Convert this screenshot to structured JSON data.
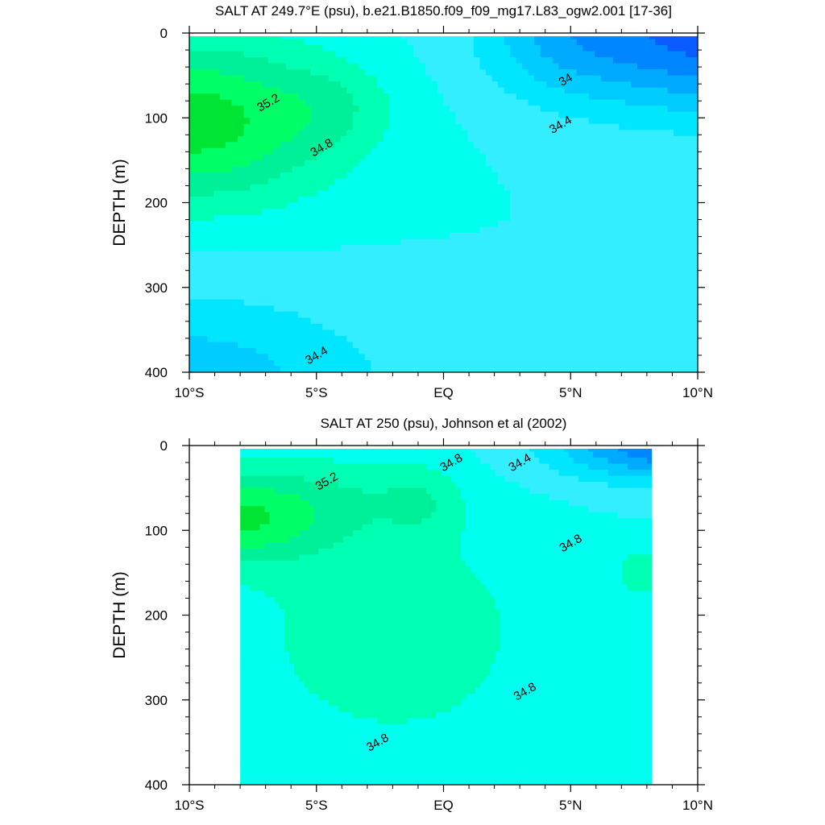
{
  "chart_data": [
    {
      "type": "contour",
      "title": "SALT AT 249.7°E (psu), b.e21.B1850.f09_f09_mg17.L83_ogw2.001 [17-36]",
      "ylabel": "DEPTH (m)",
      "xlabel": "",
      "x_tick_labels": [
        "10°S",
        "5°S",
        "EQ",
        "5°N",
        "10°N"
      ],
      "x_ticks": [
        -10,
        -5,
        0,
        5,
        10
      ],
      "y_tick_labels": [
        "0",
        "100",
        "200",
        "300",
        "400"
      ],
      "y_ticks": [
        0,
        100,
        200,
        300,
        400
      ],
      "xlim": [
        -10,
        10
      ],
      "ylim": [
        400,
        0
      ],
      "data_xlim": [
        -10,
        10
      ],
      "levels": [
        33.4,
        33.6,
        33.8,
        34.0,
        34.2,
        34.4,
        34.6,
        34.8,
        35.0,
        35.2,
        35.4,
        35.6
      ],
      "contour_labels": [
        {
          "text": "35.2",
          "x": -6.9,
          "y": 82
        },
        {
          "text": "34.8",
          "x": -4.8,
          "y": 135
        },
        {
          "text": "34",
          "x": 4.8,
          "y": 55
        },
        {
          "text": "34.4",
          "x": 4.6,
          "y": 108
        },
        {
          "text": "34.4",
          "x": -5.0,
          "y": 380
        }
      ],
      "field": {
        "kind": "model",
        "background": 34.6,
        "blobs": [
          {
            "x": -10.0,
            "y": 105,
            "sx": 5.8,
            "sy": 95,
            "amp": 0.92
          },
          {
            "x": -4.3,
            "y": 85,
            "sx": 2.2,
            "sy": 48,
            "amp": 0.18
          },
          {
            "x": 10.8,
            "y": 0,
            "sx": 6.6,
            "sy": 92,
            "amp": -1.1
          },
          {
            "x": 4.5,
            "y": 0,
            "sx": 3.0,
            "sy": 72,
            "amp": -0.3
          },
          {
            "x": -10.5,
            "y": 420,
            "sx": 7.8,
            "sy": 110,
            "amp": -0.55
          },
          {
            "x": 11.0,
            "y": 420,
            "sx": 1.8,
            "sy": 50,
            "amp": -0.35
          }
        ]
      }
    },
    {
      "type": "contour",
      "title": "SALT AT 250 (psu), Johnson et al (2002)",
      "ylabel": "DEPTH (m)",
      "xlabel": "",
      "x_tick_labels": [
        "10°S",
        "5°S",
        "EQ",
        "5°N",
        "10°N"
      ],
      "x_ticks": [
        -10,
        -5,
        0,
        5,
        10
      ],
      "y_tick_labels": [
        "0",
        "100",
        "200",
        "300",
        "400"
      ],
      "y_ticks": [
        0,
        100,
        200,
        300,
        400
      ],
      "xlim": [
        -10,
        10
      ],
      "ylim": [
        400,
        0
      ],
      "data_xlim": [
        -8,
        8.2
      ],
      "levels": [
        33.4,
        33.6,
        33.8,
        34.0,
        34.2,
        34.4,
        34.6,
        34.8,
        35.0,
        35.2,
        35.4,
        35.6
      ],
      "contour_labels": [
        {
          "text": "35.2",
          "x": -4.6,
          "y": 42
        },
        {
          "text": "34.8",
          "x": 0.3,
          "y": 20
        },
        {
          "text": "34.4",
          "x": 3.0,
          "y": 20
        },
        {
          "text": "34.8",
          "x": 5.0,
          "y": 115
        },
        {
          "text": "34.8",
          "x": 3.2,
          "y": 290
        },
        {
          "text": "34.8",
          "x": -2.6,
          "y": 350
        }
      ],
      "field": {
        "kind": "observation",
        "background": 34.6,
        "blobs": [
          {
            "x": -2.0,
            "y": 220,
            "sx": 6.0,
            "sy": 150,
            "amp": 0.33
          },
          {
            "x": -8.3,
            "y": 85,
            "sx": 3.6,
            "sy": 55,
            "amp": 0.78
          },
          {
            "x": -3.5,
            "y": 60,
            "sx": 3.4,
            "sy": 50,
            "amp": 0.22
          },
          {
            "x": -0.8,
            "y": 65,
            "sx": 1.5,
            "sy": 40,
            "amp": 0.22
          },
          {
            "x": 9.0,
            "y": 0,
            "sx": 4.6,
            "sy": 42,
            "amp": -1.0
          },
          {
            "x": 7.8,
            "y": 150,
            "sx": 1.0,
            "sy": 30,
            "amp": 0.35
          }
        ]
      }
    }
  ]
}
